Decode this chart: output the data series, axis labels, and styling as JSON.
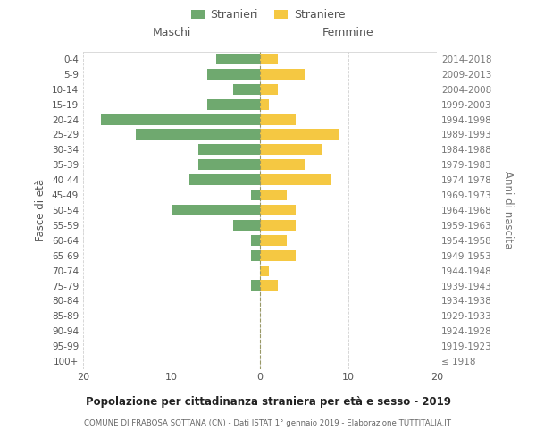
{
  "age_groups": [
    "100+",
    "95-99",
    "90-94",
    "85-89",
    "80-84",
    "75-79",
    "70-74",
    "65-69",
    "60-64",
    "55-59",
    "50-54",
    "45-49",
    "40-44",
    "35-39",
    "30-34",
    "25-29",
    "20-24",
    "15-19",
    "10-14",
    "5-9",
    "0-4"
  ],
  "birth_years": [
    "≤ 1918",
    "1919-1923",
    "1924-1928",
    "1929-1933",
    "1934-1938",
    "1939-1943",
    "1944-1948",
    "1949-1953",
    "1954-1958",
    "1959-1963",
    "1964-1968",
    "1969-1973",
    "1974-1978",
    "1979-1983",
    "1984-1988",
    "1989-1993",
    "1994-1998",
    "1999-2003",
    "2004-2008",
    "2009-2013",
    "2014-2018"
  ],
  "males": [
    0,
    0,
    0,
    0,
    0,
    1,
    0,
    1,
    1,
    3,
    10,
    1,
    8,
    7,
    7,
    14,
    18,
    6,
    3,
    6,
    5
  ],
  "females": [
    0,
    0,
    0,
    0,
    0,
    2,
    1,
    4,
    3,
    4,
    4,
    3,
    8,
    5,
    7,
    9,
    4,
    1,
    2,
    5,
    2
  ],
  "male_color": "#6fa96f",
  "female_color": "#f5c842",
  "background_color": "#ffffff",
  "grid_color": "#d0d0d0",
  "title": "Popolazione per cittadinanza straniera per età e sesso - 2019",
  "subtitle": "COMUNE DI FRABOSA SOTTANA (CN) - Dati ISTAT 1° gennaio 2019 - Elaborazione TUTTITALIA.IT",
  "ylabel_left": "Fasce di età",
  "ylabel_right": "Anni di nascita",
  "legend_male": "Stranieri",
  "legend_female": "Straniere",
  "xlim": 20,
  "header_male": "Maschi",
  "header_female": "Femmine"
}
